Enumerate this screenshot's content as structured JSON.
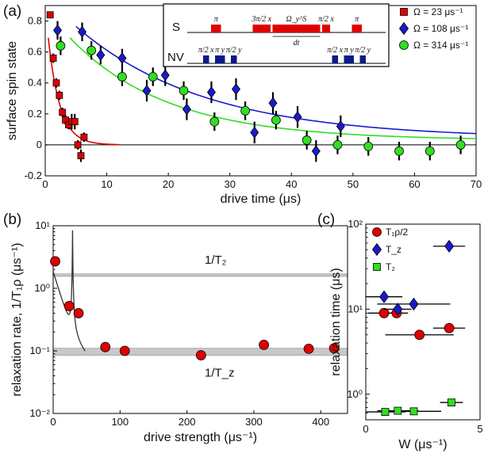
{
  "colors": {
    "red": "#e00000",
    "blue": "#1a1acc",
    "green": "#33dd22",
    "inset_pulse": "#0a1a8a",
    "band": "#c8c8c8"
  },
  "chart_data": [
    {
      "id": "a",
      "panel_label": "(a)",
      "type": "scatter",
      "xlabel": "drive time (μs)",
      "ylabel": "surface spin state",
      "xlim": [
        0,
        70
      ],
      "ylim": [
        -0.2,
        0.9
      ],
      "xticks": [
        "0",
        "10",
        "20",
        "30",
        "40",
        "50",
        "60",
        "70"
      ],
      "yticks": [
        "-0.2",
        "0",
        "0.2",
        "0.4",
        "0.6",
        "0.8"
      ],
      "legend": [
        "Ω = 23 μs⁻¹",
        "Ω = 108 μs⁻¹",
        "Ω = 314 μs⁻¹"
      ],
      "series": [
        {
          "name": "Ω = 23 μs⁻¹",
          "marker": "square",
          "color": "red",
          "x": [
            0.8,
            1.3,
            1.8,
            2.3,
            2.8,
            3.3,
            3.8,
            4.3,
            4.8,
            5.3,
            5.8,
            6.3
          ],
          "y": [
            0.84,
            0.56,
            0.4,
            0.32,
            0.21,
            0.16,
            0.13,
            0.15,
            0.15,
            0.0,
            -0.07,
            0.05
          ],
          "err": [
            0.02,
            0.03,
            0.03,
            0.03,
            0.03,
            0.03,
            0.03,
            0.05,
            0.05,
            0.03,
            0.04,
            0.03
          ]
        },
        {
          "name": "Ω = 108 μs⁻¹",
          "marker": "diamond",
          "color": "blue",
          "x": [
            2,
            6,
            9,
            12.5,
            16.5,
            19.5,
            23,
            27,
            31,
            34,
            37,
            41,
            44,
            48
          ],
          "y": [
            0.74,
            0.73,
            0.58,
            0.56,
            0.35,
            0.45,
            0.23,
            0.34,
            0.36,
            0.08,
            0.27,
            0.18,
            -0.04,
            0.12
          ],
          "err": [
            0.06,
            0.06,
            0.06,
            0.06,
            0.07,
            0.07,
            0.07,
            0.07,
            0.07,
            0.07,
            0.07,
            0.07,
            0.07,
            0.07
          ]
        },
        {
          "name": "Ω = 314 μs⁻¹",
          "marker": "circle",
          "color": "green",
          "x": [
            2.5,
            7.5,
            12.5,
            17.5,
            22.5,
            27.5,
            32.5,
            37.5,
            42.5,
            47.5,
            52.5,
            57.5,
            62.5,
            67.5
          ],
          "y": [
            0.64,
            0.61,
            0.44,
            0.44,
            0.35,
            0.15,
            0.22,
            0.16,
            0.03,
            0.0,
            -0.01,
            -0.04,
            -0.04,
            0.0
          ],
          "err": [
            0.06,
            0.06,
            0.06,
            0.06,
            0.06,
            0.06,
            0.06,
            0.06,
            0.06,
            0.06,
            0.06,
            0.06,
            0.06,
            0.06
          ]
        }
      ],
      "fits": [
        {
          "color": "red",
          "amplitude": 0.9,
          "tau": 1.9,
          "offset": 0.0,
          "x_range": [
            0.5,
            12
          ]
        },
        {
          "color": "blue",
          "amplitude": 0.92,
          "tau": 21,
          "offset": 0.04,
          "x_range": [
            5,
            70
          ]
        },
        {
          "color": "green",
          "amplitude": 0.85,
          "tau": 16,
          "offset": 0.03,
          "x_range": [
            4,
            70
          ]
        }
      ],
      "inset": {
        "row_s": "S",
        "row_nv": "NV",
        "dt": "dt",
        "s_pulses": [
          {
            "label": "π",
            "x0": 0.12,
            "x1": 0.17
          },
          {
            "label": "3π/2 x",
            "x0": 0.33,
            "x1": 0.42
          },
          {
            "label": "Ω_y^S",
            "x0": 0.43,
            "x1": 0.67
          },
          {
            "label": "π/2 x",
            "x0": 0.68,
            "x1": 0.72
          },
          {
            "label": "π",
            "x0": 0.83,
            "x1": 0.88
          }
        ],
        "nv_pulses": [
          {
            "label": "π/2 x",
            "x0": 0.08,
            "x1": 0.11
          },
          {
            "label": "π y",
            "x0": 0.14,
            "x1": 0.19
          },
          {
            "label": "π/2 y",
            "x0": 0.22,
            "x1": 0.25
          },
          {
            "label": "π/2 x",
            "x0": 0.73,
            "x1": 0.76
          },
          {
            "label": "π y",
            "x0": 0.79,
            "x1": 0.84
          },
          {
            "label": "π/2 y",
            "x0": 0.87,
            "x1": 0.9
          }
        ]
      }
    },
    {
      "id": "b",
      "panel_label": "(b)",
      "type": "scatter",
      "xlabel": "drive strength (μs⁻¹)",
      "ylabel": "relaxation rate, 1/T₁ρ (μs⁻¹)",
      "xlim": [
        0,
        440
      ],
      "ylim_log10": [
        -2,
        1
      ],
      "xticks": [
        "0",
        "100",
        "200",
        "300",
        "400"
      ],
      "yticks": [
        "10⁻²",
        "10⁻¹",
        "10⁰",
        "10¹"
      ],
      "bands": [
        {
          "label": "1/T₂",
          "low": 1.55,
          "high": 1.7
        },
        {
          "label": "1/T_z",
          "low": 0.085,
          "high": 0.11
        }
      ],
      "series": [
        {
          "name": "1/T1rho",
          "marker": "circle",
          "color": "red",
          "x": [
            3,
            24,
            38,
            78,
            107,
            221,
            315,
            382,
            420
          ],
          "y": [
            2.7,
            0.52,
            0.4,
            0.115,
            0.1,
            0.085,
            0.125,
            0.108,
            0.11
          ]
        }
      ],
      "theory_curve": {
        "color": "gray",
        "pole_positions": [
          29,
          29
        ],
        "x_range": [
          0,
          48
        ]
      }
    },
    {
      "id": "c",
      "panel_label": "(c)",
      "type": "scatter",
      "xlabel": "W (μs⁻¹)",
      "ylabel": "relaxation time (μs)",
      "xlim": [
        0,
        5
      ],
      "ylim_log10": [
        -0.3,
        2
      ],
      "xticks": [
        "0",
        "5"
      ],
      "yticks": [
        "10⁰",
        "10¹",
        "10²"
      ],
      "legend": [
        "T₁ρ/2",
        "T_z",
        "T₂"
      ],
      "series": [
        {
          "name": "T1rho/2",
          "marker": "circle",
          "color": "red",
          "x": [
            0.8,
            1.35,
            2.35,
            3.65
          ],
          "y": [
            9,
            9,
            5,
            6
          ],
          "xerr": [
            0.7,
            0.5,
            1.5,
            0.7
          ]
        },
        {
          "name": "T_z",
          "marker": "diamond",
          "color": "blue",
          "x": [
            0.8,
            1.4,
            2.1,
            3.65
          ],
          "y": [
            14,
            10,
            11.5,
            55
          ],
          "xerr": [
            0.8,
            0.6,
            1.6,
            0.7
          ]
        },
        {
          "name": "T_2",
          "marker": "square",
          "color": "green",
          "x": [
            0.85,
            1.4,
            2.1,
            3.75
          ],
          "y": [
            0.62,
            0.64,
            0.63,
            0.8
          ],
          "xerr": [
            0.9,
            0.9,
            1.2,
            0.5
          ]
        }
      ]
    }
  ]
}
